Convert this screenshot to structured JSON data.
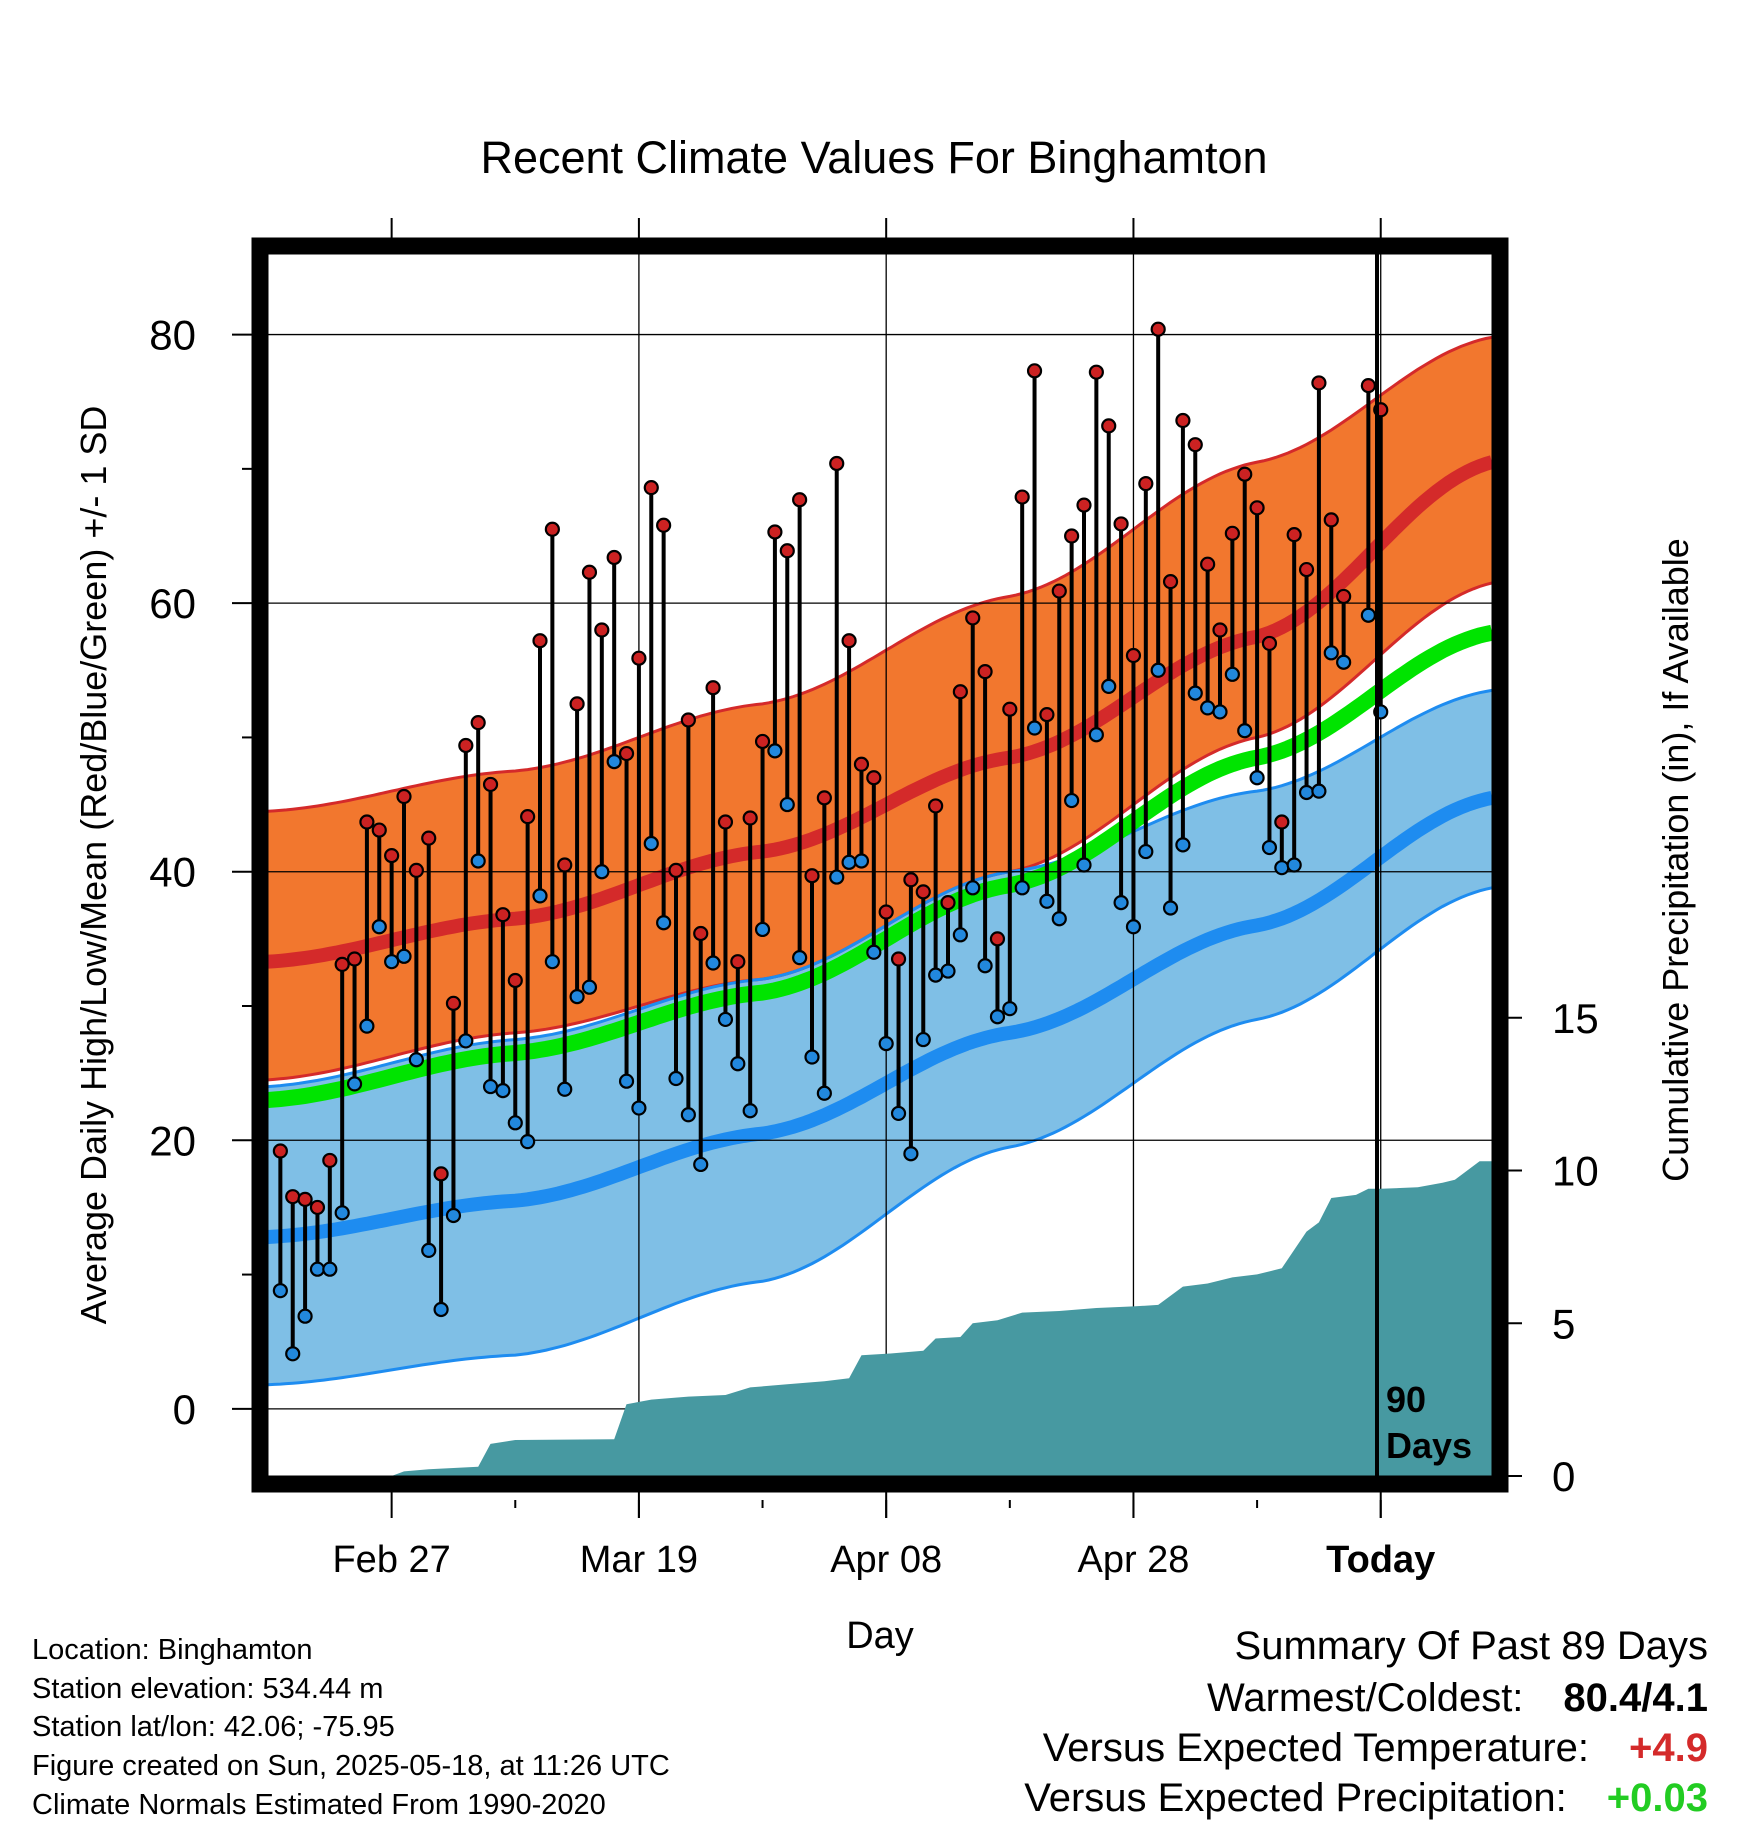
{
  "chart_data": {
    "type": "line",
    "title": "Recent Climate Values For Binghamton",
    "xlabel": "Day",
    "ylabel": "Average Daily High/Low/Mean (Red/Blue/Green) +/- 1 SD",
    "y2label": "Cumulative Precipitation (in), If Available",
    "x_ticks": [
      "Feb 27",
      "Mar 19",
      "Apr 08",
      "Apr 28",
      "Today"
    ],
    "today_label_line1": "90",
    "today_label_line2": "Days",
    "ylim": [
      -5,
      86
    ],
    "y_ticks": [
      0,
      20,
      40,
      60,
      80
    ],
    "y2lim": [
      0,
      40
    ],
    "y2_ticks": [
      0,
      5,
      10,
      15
    ],
    "grid": true,
    "day_range": [
      -90,
      9
    ],
    "normals": {
      "high_mean": [
        [
          -90,
          33.3
        ],
        [
          -70,
          36.5
        ],
        [
          -50,
          41.5
        ],
        [
          -30,
          48.5
        ],
        [
          -10,
          57.5
        ],
        [
          9,
          70.5
        ]
      ],
      "high_upper": [
        [
          -90,
          44.5
        ],
        [
          -70,
          47.5
        ],
        [
          -50,
          52.5
        ],
        [
          -30,
          60.5
        ],
        [
          -10,
          70.5
        ],
        [
          9,
          79.8
        ]
      ],
      "high_lower": [
        [
          -90,
          24.5
        ],
        [
          -70,
          28.0
        ],
        [
          -50,
          32.0
        ],
        [
          -30,
          40.0
        ],
        [
          -10,
          50.0
        ],
        [
          9,
          61.5
        ]
      ],
      "mean": [
        [
          -90,
          23.0
        ],
        [
          -70,
          26.5
        ],
        [
          -50,
          31.0
        ],
        [
          -30,
          39.0
        ],
        [
          -10,
          48.5
        ],
        [
          9,
          57.8
        ]
      ],
      "low_mean": [
        [
          -90,
          12.8
        ],
        [
          -70,
          15.5
        ],
        [
          -50,
          20.5
        ],
        [
          -30,
          28.0
        ],
        [
          -10,
          36.0
        ],
        [
          9,
          45.5
        ]
      ],
      "low_upper": [
        [
          -90,
          24.0
        ],
        [
          -70,
          27.5
        ],
        [
          -50,
          32.0
        ],
        [
          -30,
          40.0
        ],
        [
          -10,
          46.0
        ],
        [
          9,
          53.5
        ]
      ],
      "low_lower": [
        [
          -90,
          1.8
        ],
        [
          -70,
          4.0
        ],
        [
          -50,
          9.5
        ],
        [
          -30,
          19.5
        ],
        [
          -10,
          29.0
        ],
        [
          9,
          38.8
        ]
      ]
    },
    "daily_high": [
      19.2,
      15.8,
      15.6,
      15.0,
      18.5,
      33.1,
      33.5,
      43.7,
      43.1,
      41.2,
      45.6,
      40.1,
      42.5,
      17.5,
      30.2,
      49.4,
      51.1,
      46.5,
      36.8,
      31.9,
      44.1,
      57.2,
      65.5,
      40.5,
      52.5,
      62.3,
      58.0,
      63.4,
      48.8,
      55.9,
      68.6,
      65.8,
      40.1,
      51.3,
      35.4,
      53.7,
      43.7,
      33.3,
      44.0,
      49.7,
      65.3,
      63.9,
      67.7,
      39.7,
      45.5,
      70.4,
      57.2,
      48.0,
      47.0,
      37.0,
      33.5,
      39.4,
      38.5,
      44.9,
      37.7,
      53.4,
      58.9,
      54.9,
      35.0,
      52.1,
      67.9,
      77.3,
      51.7,
      60.9,
      65.0,
      67.3,
      77.2,
      73.2,
      65.9,
      56.1,
      68.9,
      80.4,
      61.6,
      73.6,
      71.8,
      62.9,
      58.0,
      65.2,
      69.6,
      67.1,
      57.0,
      43.7,
      65.1,
      62.5,
      76.4,
      66.2,
      60.5,
      null,
      76.2,
      74.4
    ],
    "daily_low": [
      8.8,
      4.1,
      6.9,
      10.4,
      10.4,
      14.6,
      24.2,
      28.5,
      35.9,
      33.3,
      33.7,
      26.0,
      11.8,
      7.4,
      14.4,
      27.4,
      40.8,
      24.0,
      23.7,
      21.3,
      19.9,
      38.2,
      33.3,
      23.8,
      30.7,
      31.4,
      40.0,
      48.2,
      24.4,
      22.4,
      42.1,
      36.2,
      24.6,
      21.9,
      18.2,
      33.2,
      29.0,
      25.7,
      22.2,
      35.7,
      49.0,
      45.0,
      33.6,
      26.2,
      23.5,
      39.6,
      40.7,
      40.8,
      34.0,
      27.2,
      22.0,
      19.0,
      27.5,
      32.3,
      32.6,
      35.3,
      38.8,
      33.0,
      29.2,
      29.8,
      38.8,
      50.7,
      37.8,
      36.5,
      45.3,
      40.5,
      50.2,
      53.8,
      37.7,
      35.9,
      41.5,
      55.0,
      37.3,
      42.0,
      53.3,
      52.2,
      51.9,
      54.7,
      50.5,
      47.0,
      41.8,
      40.3,
      40.5,
      45.9,
      46.0,
      56.3,
      55.6,
      null,
      59.1,
      51.9
    ],
    "cumulative_precip": [
      [
        -90,
        0
      ],
      [
        -80,
        0
      ],
      [
        -79,
        0.15
      ],
      [
        -77,
        0.22
      ],
      [
        -73,
        0.3
      ],
      [
        -72,
        1.05
      ],
      [
        -70,
        1.18
      ],
      [
        -62,
        1.2
      ],
      [
        -61,
        2.35
      ],
      [
        -59,
        2.5
      ],
      [
        -56,
        2.6
      ],
      [
        -53,
        2.65
      ],
      [
        -51,
        2.9
      ],
      [
        -48,
        3.0
      ],
      [
        -45,
        3.1
      ],
      [
        -43,
        3.2
      ],
      [
        -42,
        3.95
      ],
      [
        -40,
        4.0
      ],
      [
        -37,
        4.1
      ],
      [
        -36,
        4.5
      ],
      [
        -34,
        4.55
      ],
      [
        -33,
        5.0
      ],
      [
        -31,
        5.1
      ],
      [
        -29,
        5.35
      ],
      [
        -26,
        5.4
      ],
      [
        -23,
        5.5
      ],
      [
        -20,
        5.55
      ],
      [
        -18,
        5.6
      ],
      [
        -16,
        6.2
      ],
      [
        -14,
        6.3
      ],
      [
        -12,
        6.5
      ],
      [
        -10,
        6.6
      ],
      [
        -8,
        6.8
      ],
      [
        -7,
        7.4
      ],
      [
        -6,
        8.0
      ],
      [
        -5,
        8.3
      ],
      [
        -4,
        9.1
      ],
      [
        -2,
        9.2
      ],
      [
        -1,
        9.4
      ],
      [
        0,
        9.4
      ],
      [
        3,
        9.45
      ],
      [
        5,
        9.6
      ],
      [
        6,
        9.7
      ],
      [
        8,
        10.3
      ],
      [
        9,
        10.3
      ]
    ]
  },
  "info": {
    "location": "Location: Binghamton",
    "elevation": "Station elevation: 534.44 m",
    "latlon": "Station lat/lon: 42.06; -75.95",
    "created": "Figure created on Sun, 2025-05-18, at 11:26 UTC",
    "normals": "Climate Normals Estimated From 1990-2020"
  },
  "summary": {
    "title": "Summary Of Past 89 Days",
    "warm_cold_label": "Warmest/Coldest:",
    "warm_cold_value": "80.4/4.1",
    "temp_label": "Versus Expected Temperature:",
    "temp_value": "+4.9",
    "precip_label": "Versus Expected Precipitation:",
    "precip_value": "+0.03"
  },
  "colors": {
    "high_band": "#F2772E",
    "high_line": "#D42A2A",
    "high_edge": "#D42A2A",
    "low_band": "#7FBFE6",
    "low_line": "#1E8CF0",
    "low_edge": "#1E8CF0",
    "mean_line": "#00E400",
    "precip": "#4799A1",
    "high_dot": "#CC2222",
    "low_dot": "#2288DD"
  }
}
